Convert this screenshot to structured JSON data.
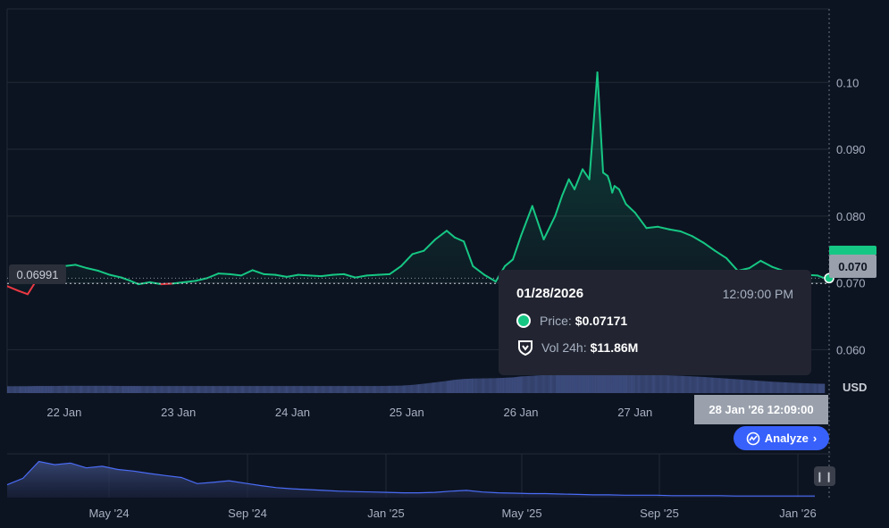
{
  "chart_data": [
    {
      "type": "area",
      "unit_label": "USD",
      "x_tick_labels": [
        "22 Jan",
        "23 Jan",
        "24 Jan",
        "25 Jan",
        "26 Jan",
        "27 Jan"
      ],
      "y_tick_labels": [
        "0.060",
        "0.070",
        "0.080",
        "0.090",
        "0.10"
      ],
      "ylim": [
        0.0535,
        0.111
      ],
      "y_ticks": [
        0.06,
        0.07,
        0.08,
        0.09,
        0.1
      ],
      "x_range_days": [
        0,
        7.2
      ],
      "x_ticks_days": [
        0.5,
        1.5,
        2.5,
        3.5,
        4.5,
        5.5
      ],
      "baseline_value": 0.06991,
      "baseline_label": "0.06991",
      "current_price_label": "0.070",
      "colors": {
        "up": "#16c784",
        "down": "#ea3943",
        "volume": "#3b4a7a",
        "background": "#0d1421"
      },
      "series": [
        {
          "x": [
            0.0,
            0.1,
            0.18,
            0.25,
            0.32,
            0.4,
            0.5,
            0.6,
            0.7,
            0.8,
            0.9,
            1.0,
            1.08,
            1.15,
            1.25,
            1.35,
            1.45,
            1.55,
            1.65,
            1.75,
            1.85,
            1.95,
            2.05,
            2.15,
            2.25,
            2.35,
            2.45,
            2.55,
            2.65,
            2.75,
            2.85,
            2.95,
            3.05,
            3.15,
            3.25,
            3.35,
            3.45,
            3.55,
            3.65,
            3.75,
            3.85,
            3.92,
            4.0,
            4.08,
            4.18,
            4.28,
            4.36,
            4.43,
            4.5,
            4.6,
            4.7,
            4.8,
            4.86,
            4.92,
            4.97,
            5.04,
            5.1,
            5.17,
            5.22,
            5.26,
            5.28,
            5.3,
            5.32,
            5.36,
            5.42,
            5.5,
            5.6,
            5.7,
            5.8,
            5.9,
            6.0,
            6.1,
            6.2,
            6.3,
            6.4,
            6.5,
            6.6,
            6.7,
            6.8,
            6.9,
            7.0,
            7.1,
            7.16
          ],
          "values": [
            0.0695,
            0.0688,
            0.0683,
            0.0702,
            0.0709,
            0.0705,
            0.0725,
            0.0727,
            0.0722,
            0.0718,
            0.0712,
            0.0708,
            0.0703,
            0.0698,
            0.0701,
            0.0698,
            0.0699,
            0.0701,
            0.0703,
            0.0707,
            0.0714,
            0.0713,
            0.0711,
            0.0719,
            0.0713,
            0.0712,
            0.0709,
            0.0712,
            0.0711,
            0.071,
            0.0712,
            0.0713,
            0.0708,
            0.0711,
            0.0712,
            0.0713,
            0.0725,
            0.0743,
            0.0748,
            0.0765,
            0.0778,
            0.0768,
            0.0762,
            0.0725,
            0.0712,
            0.0702,
            0.0725,
            0.0735,
            0.077,
            0.0815,
            0.0765,
            0.08,
            0.083,
            0.0855,
            0.084,
            0.087,
            0.0855,
            0.1015,
            0.0865,
            0.086,
            0.085,
            0.0835,
            0.0845,
            0.084,
            0.0818,
            0.0805,
            0.0782,
            0.0784,
            0.078,
            0.0777,
            0.077,
            0.076,
            0.0748,
            0.0737,
            0.0718,
            0.0722,
            0.0733,
            0.0724,
            0.0718,
            0.0712,
            0.0712,
            0.0711,
            0.0707
          ],
          "volume": [
            0.35,
            0.35,
            0.35,
            0.36,
            0.36,
            0.36,
            0.37,
            0.37,
            0.37,
            0.37,
            0.37,
            0.36,
            0.36,
            0.36,
            0.36,
            0.36,
            0.36,
            0.36,
            0.36,
            0.36,
            0.36,
            0.36,
            0.36,
            0.36,
            0.36,
            0.36,
            0.36,
            0.36,
            0.36,
            0.36,
            0.36,
            0.36,
            0.36,
            0.36,
            0.36,
            0.37,
            0.38,
            0.42,
            0.48,
            0.55,
            0.62,
            0.68,
            0.72,
            0.74,
            0.75,
            0.76,
            0.78,
            0.8,
            0.85,
            0.88,
            0.92,
            0.95,
            0.96,
            0.97,
            0.98,
            0.98,
            0.99,
            1.0,
            1.0,
            1.0,
            1.0,
            1.0,
            1.0,
            0.99,
            0.98,
            0.96,
            0.94,
            0.92,
            0.9,
            0.88,
            0.85,
            0.82,
            0.78,
            0.74,
            0.7,
            0.66,
            0.62,
            0.58,
            0.55,
            0.52,
            0.5,
            0.48,
            0.47
          ]
        }
      ]
    },
    {
      "type": "area",
      "role": "navigator",
      "x_tick_labels": [
        "May '24",
        "Sep '24",
        "Jan '25",
        "May '25",
        "Sep '25",
        "Jan '26"
      ],
      "values": [
        0.32,
        0.48,
        0.9,
        0.82,
        0.86,
        0.74,
        0.78,
        0.7,
        0.66,
        0.6,
        0.55,
        0.5,
        0.35,
        0.38,
        0.42,
        0.36,
        0.3,
        0.25,
        0.22,
        0.2,
        0.18,
        0.16,
        0.15,
        0.14,
        0.13,
        0.12,
        0.12,
        0.13,
        0.16,
        0.18,
        0.14,
        0.12,
        0.11,
        0.1,
        0.1,
        0.09,
        0.08,
        0.07,
        0.07,
        0.06,
        0.06,
        0.06,
        0.05,
        0.05,
        0.05,
        0.05,
        0.04,
        0.04,
        0.04,
        0.04,
        0.04,
        0.04
      ]
    }
  ],
  "tooltip": {
    "date": "01/28/2026",
    "time": "12:09:00 PM",
    "price_label": "Price:",
    "price_value": "$0.07171",
    "vol_label": "Vol 24h:",
    "vol_value": "$11.86M"
  },
  "crosshair_time": "28 Jan '26 12:09:00",
  "analyze_button": "Analyze"
}
